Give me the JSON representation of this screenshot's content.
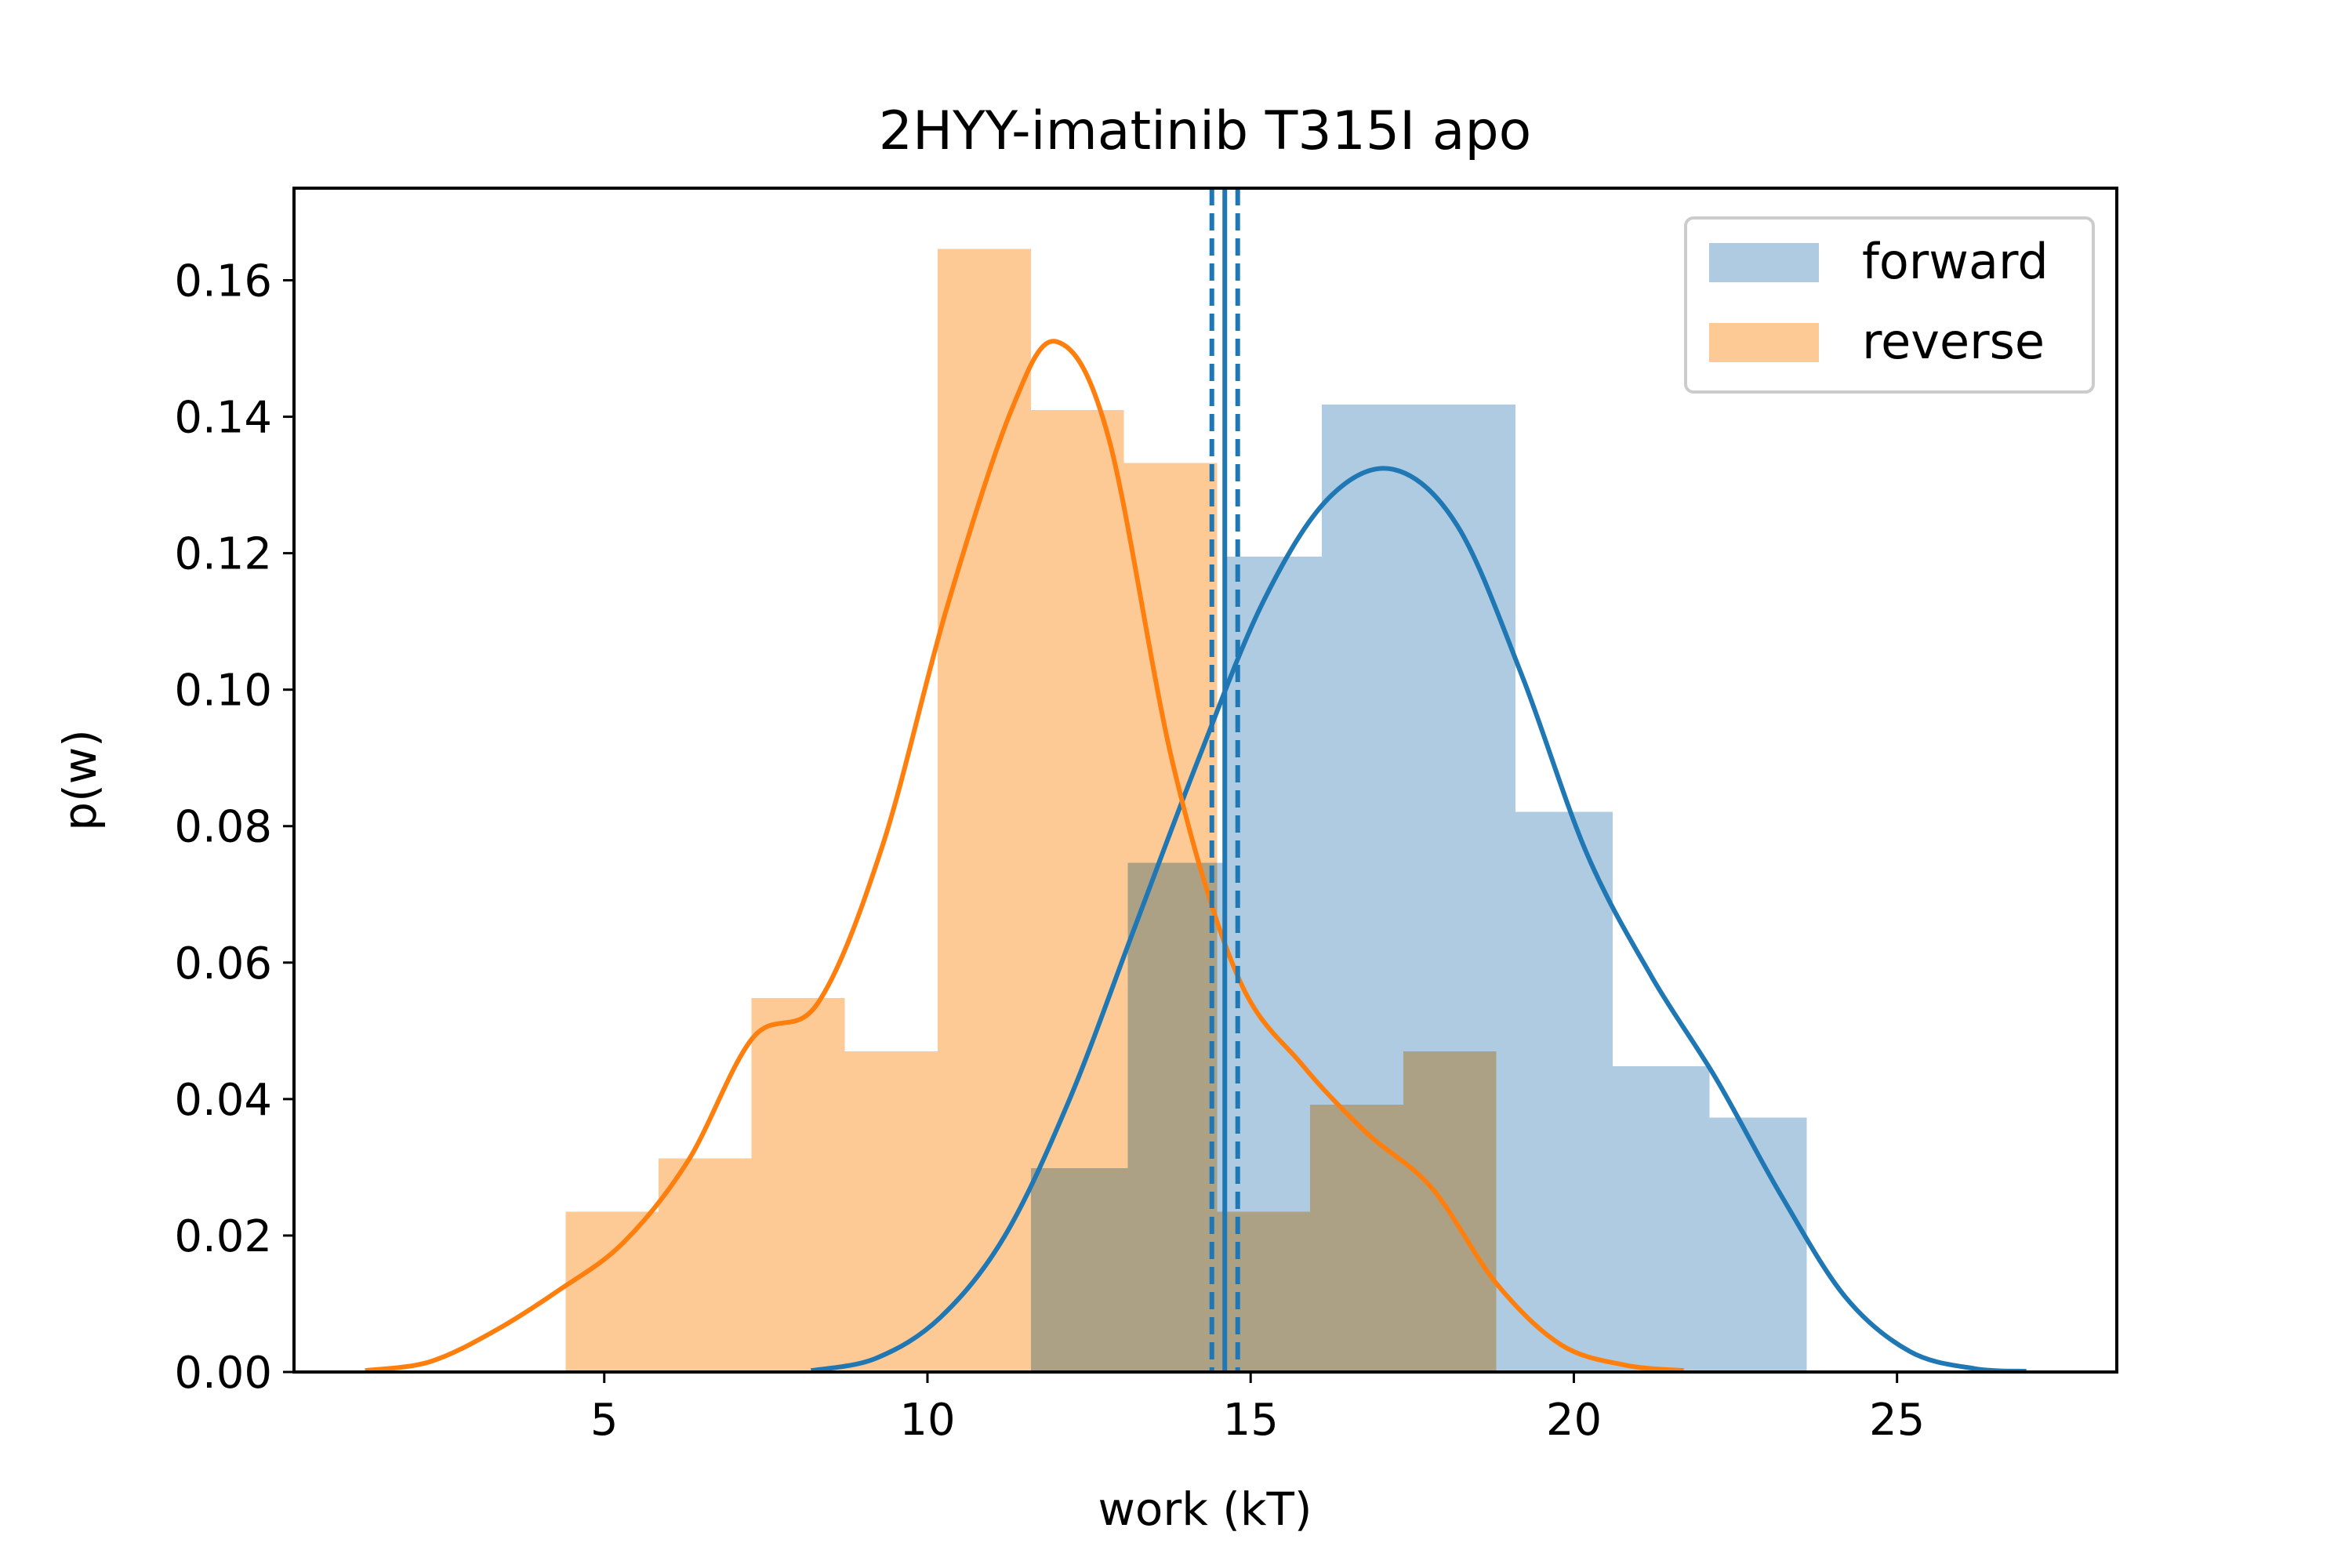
{
  "chart_data": {
    "type": "histogram",
    "title": "2HYY-imatinib T315I apo",
    "xlabel": "work (kT)",
    "ylabel": "p(w)",
    "xlim": [
      0.2,
      28.4
    ],
    "ylim": [
      0,
      0.1735
    ],
    "xticks": [
      5,
      10,
      15,
      20,
      25
    ],
    "yticks": [
      0.0,
      0.02,
      0.04,
      0.06,
      0.08,
      0.1,
      0.12,
      0.14,
      0.16
    ],
    "legend_position": "top-right",
    "series": [
      {
        "name": "forward",
        "color": "#1f77b4",
        "fill_color": "#aecbe1",
        "hist_edges": [
          11.6,
          13.1,
          14.6,
          16.1,
          17.6,
          19.1,
          20.6,
          22.1,
          23.6
        ],
        "hist_values": [
          0.0299,
          0.0746,
          0.1195,
          0.1418,
          0.1418,
          0.0821,
          0.0448,
          0.0373
        ],
        "kde_x": [
          8.2,
          9.2,
          10.2,
          11.2,
          12.2,
          13.2,
          14.2,
          15.2,
          16.2,
          17.2,
          18.2,
          19.2,
          20.2,
          21.2,
          22.2,
          23.2,
          24.2,
          25.2,
          26.2,
          27.0
        ],
        "kde_y": [
          0.0002,
          0.002,
          0.008,
          0.02,
          0.04,
          0.065,
          0.09,
          0.113,
          0.128,
          0.1323,
          0.124,
          0.102,
          0.076,
          0.058,
          0.043,
          0.026,
          0.011,
          0.003,
          0.0005,
          0.0001
        ],
        "mean": 14.6,
        "ci": [
          14.4,
          14.8
        ]
      },
      {
        "name": "reverse",
        "color": "#ff7f0e",
        "fill_color": "#fdca96",
        "hist_edges": [
          4.4,
          5.84,
          7.28,
          8.72,
          10.16,
          11.6,
          13.04,
          14.48,
          15.92,
          17.36,
          18.8
        ],
        "hist_values": [
          0.0235,
          0.0313,
          0.0548,
          0.047,
          0.1646,
          0.141,
          0.1332,
          0.0235,
          0.0392,
          0.047
        ],
        "kde_x": [
          1.3,
          2.3,
          3.3,
          4.3,
          5.3,
          6.3,
          7.3,
          8.3,
          9.3,
          10.3,
          11.3,
          12.0,
          12.8,
          13.8,
          14.8,
          15.8,
          16.8,
          17.8,
          18.8,
          19.8,
          20.8,
          21.7
        ],
        "kde_y": [
          0.0002,
          0.0015,
          0.006,
          0.012,
          0.019,
          0.031,
          0.049,
          0.054,
          0.077,
          0.112,
          0.141,
          0.151,
          0.137,
          0.089,
          0.058,
          0.045,
          0.035,
          0.027,
          0.013,
          0.004,
          0.001,
          0.0002
        ],
        "mean": null,
        "ci": null
      }
    ]
  }
}
